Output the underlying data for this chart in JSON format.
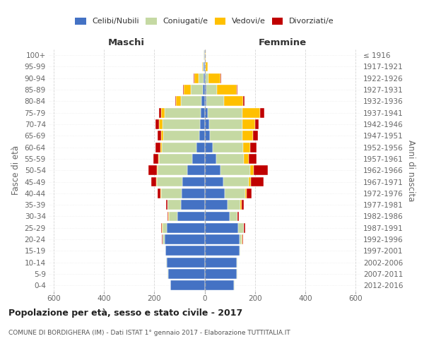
{
  "age_groups": [
    "0-4",
    "5-9",
    "10-14",
    "15-19",
    "20-24",
    "25-29",
    "30-34",
    "35-39",
    "40-44",
    "45-49",
    "50-54",
    "55-59",
    "60-64",
    "65-69",
    "70-74",
    "75-79",
    "80-84",
    "85-89",
    "90-94",
    "95-99",
    "100+"
  ],
  "birth_years": [
    "2012-2016",
    "2007-2011",
    "2002-2006",
    "1997-2001",
    "1992-1996",
    "1987-1991",
    "1982-1986",
    "1977-1981",
    "1972-1976",
    "1967-1971",
    "1962-1966",
    "1957-1961",
    "1952-1956",
    "1947-1951",
    "1942-1946",
    "1937-1941",
    "1932-1936",
    "1927-1931",
    "1922-1926",
    "1917-1921",
    "≤ 1916"
  ],
  "male_celibi": [
    135,
    145,
    150,
    155,
    158,
    150,
    108,
    95,
    92,
    88,
    68,
    48,
    32,
    22,
    18,
    15,
    12,
    8,
    5,
    3,
    2
  ],
  "male_coniugati": [
    2,
    2,
    2,
    2,
    10,
    18,
    35,
    52,
    82,
    102,
    118,
    132,
    137,
    142,
    150,
    145,
    83,
    48,
    18,
    4,
    1
  ],
  "male_vedovi": [
    0,
    0,
    0,
    0,
    0,
    1,
    1,
    2,
    2,
    3,
    5,
    5,
    7,
    10,
    14,
    12,
    20,
    28,
    18,
    4,
    0
  ],
  "male_divorziati": [
    0,
    0,
    0,
    0,
    2,
    3,
    5,
    5,
    10,
    20,
    32,
    20,
    20,
    13,
    13,
    10,
    3,
    2,
    2,
    0,
    0
  ],
  "female_celibi": [
    118,
    128,
    128,
    138,
    138,
    133,
    100,
    90,
    80,
    75,
    62,
    45,
    32,
    22,
    18,
    12,
    8,
    8,
    4,
    2,
    1
  ],
  "female_coniugati": [
    2,
    2,
    2,
    3,
    10,
    22,
    30,
    52,
    82,
    100,
    118,
    112,
    120,
    128,
    132,
    138,
    68,
    42,
    12,
    3,
    1
  ],
  "female_vedovi": [
    0,
    0,
    0,
    0,
    2,
    2,
    2,
    5,
    5,
    10,
    15,
    20,
    30,
    44,
    50,
    72,
    78,
    78,
    48,
    8,
    1
  ],
  "female_divorziati": [
    0,
    0,
    0,
    0,
    2,
    5,
    5,
    10,
    20,
    50,
    58,
    30,
    25,
    18,
    14,
    15,
    5,
    4,
    2,
    0,
    0
  ],
  "colors": {
    "celibi": "#4472c4",
    "coniugati": "#c5d9a3",
    "vedovi": "#ffc000",
    "divorziati": "#c00000"
  },
  "title": "Popolazione per età, sesso e stato civile - 2017",
  "subtitle": "COMUNE DI BORDIGHERA (IM) - Dati ISTAT 1° gennaio 2017 - Elaborazione TUTTITALIA.IT",
  "header_left": "Maschi",
  "header_right": "Femmine",
  "ylabel_left": "Fasce di età",
  "ylabel_right": "Anni di nascita",
  "xlim": 620,
  "xtick_values": [
    -600,
    -400,
    -200,
    0,
    200,
    400,
    600
  ],
  "legend_labels": [
    "Celibi/Nubili",
    "Coniugati/e",
    "Vedovi/e",
    "Divorziati/e"
  ],
  "background_color": "#ffffff",
  "grid_color": "#cccccc"
}
